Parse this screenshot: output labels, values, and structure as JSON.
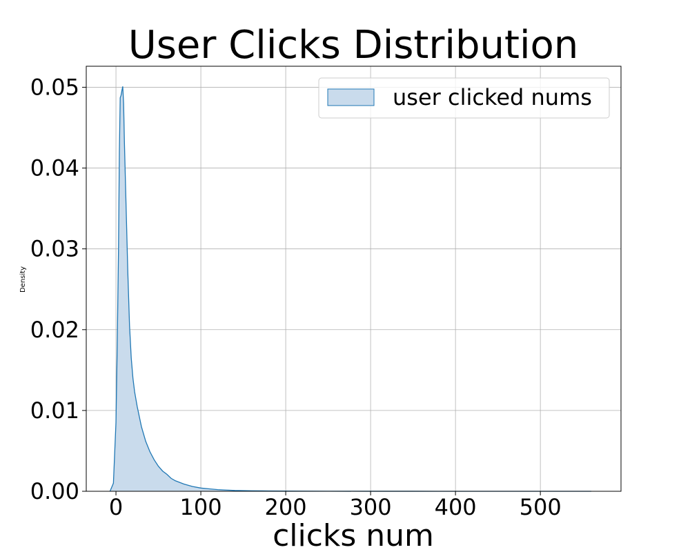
{
  "chart_data": {
    "type": "area",
    "title": "User Clicks Distribution",
    "xlabel": "clicks num",
    "ylabel": "Density",
    "xlim": [
      -35,
      595
    ],
    "ylim": [
      0,
      0.0526
    ],
    "xticks": [
      0,
      100,
      200,
      300,
      400,
      500
    ],
    "yticks": [
      0.0,
      0.01,
      0.02,
      0.03,
      0.04,
      0.05
    ],
    "xtick_labels": [
      "0",
      "100",
      "200",
      "300",
      "400",
      "500"
    ],
    "ytick_labels": [
      "0.00",
      "0.01",
      "0.02",
      "0.03",
      "0.04",
      "0.05"
    ],
    "grid": true,
    "legend": {
      "position": "top-right",
      "entries": [
        "user clicked nums"
      ]
    },
    "series": [
      {
        "name": "user clicked nums",
        "color": "#1f77b4",
        "fill": "#c9dbec",
        "x": [
          -7,
          -3,
          0,
          1.5,
          3,
          4,
          5,
          6,
          7,
          8,
          9,
          10,
          12,
          14,
          16,
          18,
          20,
          22,
          25,
          28,
          30,
          35,
          40,
          45,
          50,
          55,
          60,
          65,
          70,
          75,
          80,
          90,
          100,
          110,
          120,
          130,
          140,
          150,
          160,
          180,
          200,
          220,
          250,
          300,
          350,
          400,
          450,
          500,
          560
        ],
        "y": [
          0.0,
          0.001,
          0.0085,
          0.018,
          0.03,
          0.042,
          0.0487,
          0.049,
          0.0496,
          0.0501,
          0.048,
          0.043,
          0.035,
          0.027,
          0.0205,
          0.0165,
          0.014,
          0.0123,
          0.0105,
          0.009,
          0.008,
          0.0062,
          0.0049,
          0.0039,
          0.0031,
          0.0025,
          0.0021,
          0.0016,
          0.0013,
          0.0011,
          0.0009,
          0.0006,
          0.0004,
          0.0003,
          0.0002,
          0.00015,
          0.0001,
          8e-05,
          6e-05,
          4e-05,
          3e-05,
          2e-05,
          1e-05,
          5e-06,
          3e-06,
          2e-06,
          1e-06,
          5e-07,
          0.0
        ]
      }
    ]
  }
}
